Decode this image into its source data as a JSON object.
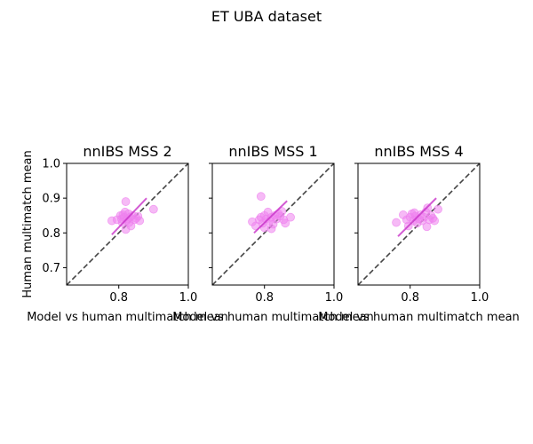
{
  "figure": {
    "suptitle": "ET UBA dataset"
  },
  "chart_data": [
    {
      "type": "scatter",
      "title": "nnIBS MSS 2",
      "xlabel": "Model vs human multimatch mean",
      "ylabel": "Human multimatch mean",
      "xlim": [
        0.65,
        1.0
      ],
      "ylim": [
        0.65,
        1.0
      ],
      "xticks": [
        0.8,
        1.0
      ],
      "xtick_labels": [
        "0.8",
        "1.0"
      ],
      "yticks": [
        0.7,
        0.8,
        0.9,
        1.0
      ],
      "ytick_labels": [
        "0.7",
        "0.8",
        "0.9",
        "1.0"
      ],
      "show_yticklabels": true,
      "grid": false,
      "point_color": "#ee82ee",
      "fit_color": "#c832c8",
      "identity_line_color": "#444444",
      "x": [
        0.78,
        0.795,
        0.805,
        0.808,
        0.81,
        0.812,
        0.815,
        0.818,
        0.82,
        0.822,
        0.825,
        0.828,
        0.83,
        0.832,
        0.835,
        0.84,
        0.845,
        0.85,
        0.855,
        0.86,
        0.9,
        0.82
      ],
      "y": [
        0.835,
        0.838,
        0.85,
        0.84,
        0.83,
        0.852,
        0.845,
        0.86,
        0.81,
        0.835,
        0.84,
        0.855,
        0.83,
        0.845,
        0.82,
        0.85,
        0.838,
        0.842,
        0.848,
        0.835,
        0.868,
        0.89
      ],
      "fit": {
        "x": [
          0.78,
          0.88
        ],
        "y": [
          0.795,
          0.9
        ]
      }
    },
    {
      "type": "scatter",
      "title": "nnIBS MSS 1",
      "xlabel": "Model vs human multimatch mean",
      "ylabel": "",
      "xlim": [
        0.65,
        1.0
      ],
      "ylim": [
        0.65,
        1.0
      ],
      "xticks": [
        0.8,
        1.0
      ],
      "xtick_labels": [
        "0.8",
        "1.0"
      ],
      "yticks": [
        0.7,
        0.8,
        0.9,
        1.0
      ],
      "ytick_labels": [
        "",
        "",
        "",
        ""
      ],
      "show_yticklabels": false,
      "grid": false,
      "point_color": "#ee82ee",
      "fit_color": "#c832c8",
      "identity_line_color": "#444444",
      "x": [
        0.765,
        0.775,
        0.785,
        0.79,
        0.795,
        0.8,
        0.805,
        0.81,
        0.815,
        0.82,
        0.825,
        0.83,
        0.835,
        0.84,
        0.845,
        0.85,
        0.855,
        0.86,
        0.875,
        0.79,
        0.8,
        0.82
      ],
      "y": [
        0.832,
        0.82,
        0.838,
        0.845,
        0.828,
        0.85,
        0.84,
        0.86,
        0.835,
        0.845,
        0.825,
        0.85,
        0.84,
        0.855,
        0.848,
        0.862,
        0.838,
        0.828,
        0.845,
        0.905,
        0.815,
        0.812
      ],
      "fit": {
        "x": [
          0.77,
          0.865
        ],
        "y": [
          0.8,
          0.892
        ]
      }
    },
    {
      "type": "scatter",
      "title": "nnIBS MSS 4",
      "xlabel": "Model vs human multimatch mean",
      "ylabel": "",
      "xlim": [
        0.65,
        1.0
      ],
      "ylim": [
        0.65,
        1.0
      ],
      "xticks": [
        0.8,
        1.0
      ],
      "xtick_labels": [
        "0.8",
        "1.0"
      ],
      "yticks": [
        0.7,
        0.8,
        0.9,
        1.0
      ],
      "ytick_labels": [
        "",
        "",
        "",
        ""
      ],
      "show_yticklabels": false,
      "grid": false,
      "point_color": "#ee82ee",
      "fit_color": "#c832c8",
      "identity_line_color": "#444444",
      "x": [
        0.76,
        0.78,
        0.79,
        0.8,
        0.805,
        0.81,
        0.815,
        0.82,
        0.825,
        0.83,
        0.835,
        0.84,
        0.845,
        0.85,
        0.855,
        0.86,
        0.865,
        0.87,
        0.88,
        0.795,
        0.812,
        0.848
      ],
      "y": [
        0.83,
        0.852,
        0.838,
        0.845,
        0.855,
        0.835,
        0.848,
        0.828,
        0.84,
        0.852,
        0.835,
        0.845,
        0.86,
        0.872,
        0.838,
        0.85,
        0.842,
        0.835,
        0.868,
        0.82,
        0.858,
        0.818
      ],
      "fit": {
        "x": [
          0.765,
          0.875
        ],
        "y": [
          0.79,
          0.9
        ]
      }
    }
  ]
}
